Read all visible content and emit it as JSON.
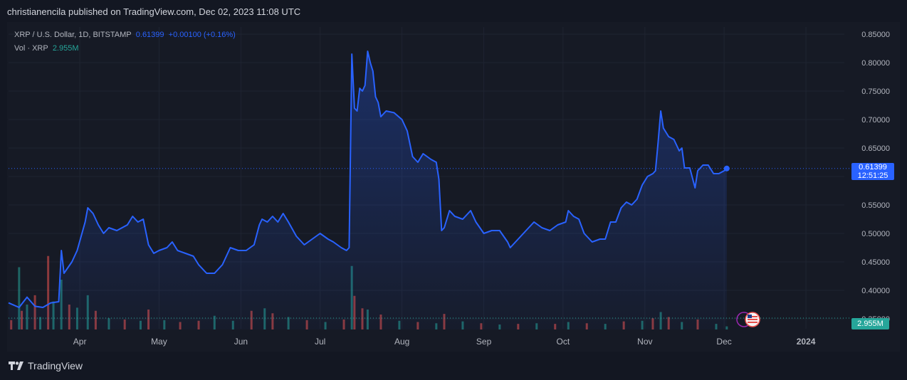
{
  "header": {
    "published": "christianencila published on TradingView.com, Dec 02, 2023 11:08 UTC"
  },
  "legend": {
    "symbol": "XRP / U.S. Dollar, 1D, BITSTAMP",
    "last": "0.61399",
    "change": "+0.00100 (+0.16%)",
    "vol_label": "Vol · XRP",
    "vol_value": "2.955M"
  },
  "price_tag": {
    "price": "0.61399",
    "countdown": "12:51:25"
  },
  "volume_tag": {
    "value": "2.955M"
  },
  "footer": {
    "brand": "TradingView"
  },
  "colors": {
    "line": "#2962ff",
    "up": "#26a69a",
    "down": "#ef5350",
    "bg": "#131722"
  },
  "chart_data": {
    "type": "line",
    "y_ticks": [
      "0.85000",
      "0.80000",
      "0.75000",
      "0.70000",
      "0.65000",
      "0.60000",
      "0.55000",
      "0.50000",
      "0.45000",
      "0.40000",
      "0.35000"
    ],
    "ylim": [
      0.35,
      0.85
    ],
    "x_ticks": [
      "Apr",
      "May",
      "Jun",
      "Jul",
      "Aug",
      "Sep",
      "Oct",
      "Nov",
      "Dec",
      "2024"
    ],
    "x_tick_dates": [
      "2023-04-01",
      "2023-05-01",
      "2023-06-01",
      "2023-07-01",
      "2023-08-01",
      "2023-09-01",
      "2023-10-01",
      "2023-11-01",
      "2023-12-01",
      "2024-01-01"
    ],
    "xlim": [
      "2023-03-05",
      "2024-01-15"
    ],
    "grid": true,
    "series": [
      {
        "values": [
          [
            "2023-03-05",
            0.378
          ],
          [
            "2023-03-09",
            0.37
          ],
          [
            "2023-03-12",
            0.388
          ],
          [
            "2023-03-15",
            0.372
          ],
          [
            "2023-03-18",
            0.37
          ],
          [
            "2023-03-21",
            0.378
          ],
          [
            "2023-03-24",
            0.38
          ],
          [
            "2023-03-25",
            0.47
          ],
          [
            "2023-03-26",
            0.43
          ],
          [
            "2023-03-29",
            0.45
          ],
          [
            "2023-03-31",
            0.47
          ],
          [
            "2023-04-03",
            0.52
          ],
          [
            "2023-04-04",
            0.545
          ],
          [
            "2023-04-06",
            0.535
          ],
          [
            "2023-04-08",
            0.515
          ],
          [
            "2023-04-10",
            0.5
          ],
          [
            "2023-04-12",
            0.51
          ],
          [
            "2023-04-15",
            0.505
          ],
          [
            "2023-04-17",
            0.51
          ],
          [
            "2023-04-19",
            0.515
          ],
          [
            "2023-04-21",
            0.53
          ],
          [
            "2023-04-23",
            0.52
          ],
          [
            "2023-04-25",
            0.525
          ],
          [
            "2023-04-27",
            0.48
          ],
          [
            "2023-04-29",
            0.465
          ],
          [
            "2023-05-01",
            0.47
          ],
          [
            "2023-05-04",
            0.475
          ],
          [
            "2023-05-06",
            0.485
          ],
          [
            "2023-05-08",
            0.47
          ],
          [
            "2023-05-11",
            0.465
          ],
          [
            "2023-05-14",
            0.46
          ],
          [
            "2023-05-16",
            0.445
          ],
          [
            "2023-05-19",
            0.43
          ],
          [
            "2023-05-22",
            0.43
          ],
          [
            "2023-05-25",
            0.445
          ],
          [
            "2023-05-28",
            0.475
          ],
          [
            "2023-05-31",
            0.47
          ],
          [
            "2023-06-03",
            0.47
          ],
          [
            "2023-06-06",
            0.48
          ],
          [
            "2023-06-08",
            0.515
          ],
          [
            "2023-06-09",
            0.525
          ],
          [
            "2023-06-11",
            0.52
          ],
          [
            "2023-06-13",
            0.53
          ],
          [
            "2023-06-15",
            0.52
          ],
          [
            "2023-06-17",
            0.535
          ],
          [
            "2023-06-19",
            0.52
          ],
          [
            "2023-06-22",
            0.495
          ],
          [
            "2023-06-25",
            0.48
          ],
          [
            "2023-06-28",
            0.49
          ],
          [
            "2023-07-01",
            0.5
          ],
          [
            "2023-07-04",
            0.49
          ],
          [
            "2023-07-06",
            0.485
          ],
          [
            "2023-07-09",
            0.475
          ],
          [
            "2023-07-11",
            0.47
          ],
          [
            "2023-07-12",
            0.475
          ],
          [
            "2023-07-13",
            0.815
          ],
          [
            "2023-07-14",
            0.72
          ],
          [
            "2023-07-15",
            0.715
          ],
          [
            "2023-07-16",
            0.755
          ],
          [
            "2023-07-17",
            0.75
          ],
          [
            "2023-07-18",
            0.76
          ],
          [
            "2023-07-19",
            0.82
          ],
          [
            "2023-07-20",
            0.8
          ],
          [
            "2023-07-21",
            0.785
          ],
          [
            "2023-07-22",
            0.74
          ],
          [
            "2023-07-23",
            0.73
          ],
          [
            "2023-07-24",
            0.705
          ],
          [
            "2023-07-26",
            0.715
          ],
          [
            "2023-07-29",
            0.712
          ],
          [
            "2023-08-01",
            0.7
          ],
          [
            "2023-08-03",
            0.68
          ],
          [
            "2023-08-05",
            0.635
          ],
          [
            "2023-08-07",
            0.625
          ],
          [
            "2023-08-09",
            0.64
          ],
          [
            "2023-08-12",
            0.63
          ],
          [
            "2023-08-14",
            0.625
          ],
          [
            "2023-08-15",
            0.595
          ],
          [
            "2023-08-16",
            0.505
          ],
          [
            "2023-08-17",
            0.51
          ],
          [
            "2023-08-19",
            0.54
          ],
          [
            "2023-08-21",
            0.53
          ],
          [
            "2023-08-24",
            0.525
          ],
          [
            "2023-08-27",
            0.54
          ],
          [
            "2023-08-29",
            0.52
          ],
          [
            "2023-09-01",
            0.5
          ],
          [
            "2023-09-04",
            0.505
          ],
          [
            "2023-09-07",
            0.505
          ],
          [
            "2023-09-10",
            0.485
          ],
          [
            "2023-09-11",
            0.475
          ],
          [
            "2023-09-14",
            0.49
          ],
          [
            "2023-09-17",
            0.505
          ],
          [
            "2023-09-20",
            0.52
          ],
          [
            "2023-09-23",
            0.51
          ],
          [
            "2023-09-26",
            0.505
          ],
          [
            "2023-09-29",
            0.515
          ],
          [
            "2023-10-02",
            0.52
          ],
          [
            "2023-10-03",
            0.54
          ],
          [
            "2023-10-05",
            0.53
          ],
          [
            "2023-10-07",
            0.525
          ],
          [
            "2023-10-09",
            0.5
          ],
          [
            "2023-10-12",
            0.485
          ],
          [
            "2023-10-15",
            0.49
          ],
          [
            "2023-10-17",
            0.49
          ],
          [
            "2023-10-19",
            0.52
          ],
          [
            "2023-10-21",
            0.52
          ],
          [
            "2023-10-23",
            0.545
          ],
          [
            "2023-10-25",
            0.555
          ],
          [
            "2023-10-27",
            0.55
          ],
          [
            "2023-10-29",
            0.56
          ],
          [
            "2023-10-31",
            0.585
          ],
          [
            "2023-11-02",
            0.6
          ],
          [
            "2023-11-04",
            0.605
          ],
          [
            "2023-11-05",
            0.61
          ],
          [
            "2023-11-06",
            0.66
          ],
          [
            "2023-11-07",
            0.715
          ],
          [
            "2023-11-08",
            0.685
          ],
          [
            "2023-11-10",
            0.67
          ],
          [
            "2023-11-12",
            0.665
          ],
          [
            "2023-11-14",
            0.645
          ],
          [
            "2023-11-15",
            0.65
          ],
          [
            "2023-11-16",
            0.615
          ],
          [
            "2023-11-18",
            0.615
          ],
          [
            "2023-11-20",
            0.58
          ],
          [
            "2023-11-21",
            0.61
          ],
          [
            "2023-11-23",
            0.62
          ],
          [
            "2023-11-25",
            0.62
          ],
          [
            "2023-11-27",
            0.605
          ],
          [
            "2023-11-29",
            0.605
          ],
          [
            "2023-12-01",
            0.61
          ],
          [
            "2023-12-02",
            0.614
          ]
        ]
      }
    ],
    "last_point": [
      "2023-12-02",
      0.61399
    ],
    "volume": {
      "ylim": [
        0,
        120
      ],
      "bars": [
        {
          "d": "2023-03-06",
          "v": 15,
          "up": false
        },
        {
          "d": "2023-03-09",
          "v": 100,
          "up": true
        },
        {
          "d": "2023-03-10",
          "v": 30,
          "up": false
        },
        {
          "d": "2023-03-12",
          "v": 40,
          "up": true
        },
        {
          "d": "2023-03-15",
          "v": 55,
          "up": false
        },
        {
          "d": "2023-03-17",
          "v": 20,
          "up": true
        },
        {
          "d": "2023-03-20",
          "v": 118,
          "up": false
        },
        {
          "d": "2023-03-22",
          "v": 45,
          "up": true
        },
        {
          "d": "2023-03-25",
          "v": 80,
          "up": true
        },
        {
          "d": "2023-03-28",
          "v": 40,
          "up": false
        },
        {
          "d": "2023-03-31",
          "v": 35,
          "up": true
        },
        {
          "d": "2023-04-04",
          "v": 55,
          "up": true
        },
        {
          "d": "2023-04-07",
          "v": 30,
          "up": false
        },
        {
          "d": "2023-04-12",
          "v": 18,
          "up": true
        },
        {
          "d": "2023-04-18",
          "v": 16,
          "up": false
        },
        {
          "d": "2023-04-24",
          "v": 14,
          "up": true
        },
        {
          "d": "2023-04-27",
          "v": 32,
          "up": false
        },
        {
          "d": "2023-05-03",
          "v": 15,
          "up": true
        },
        {
          "d": "2023-05-09",
          "v": 12,
          "up": false
        },
        {
          "d": "2023-05-16",
          "v": 14,
          "up": false
        },
        {
          "d": "2023-05-22",
          "v": 22,
          "up": true
        },
        {
          "d": "2023-05-29",
          "v": 14,
          "up": true
        },
        {
          "d": "2023-06-05",
          "v": 30,
          "up": false
        },
        {
          "d": "2023-06-10",
          "v": 34,
          "up": true
        },
        {
          "d": "2023-06-13",
          "v": 26,
          "up": false
        },
        {
          "d": "2023-06-19",
          "v": 20,
          "up": true
        },
        {
          "d": "2023-06-26",
          "v": 15,
          "up": false
        },
        {
          "d": "2023-07-03",
          "v": 12,
          "up": true
        },
        {
          "d": "2023-07-10",
          "v": 16,
          "up": false
        },
        {
          "d": "2023-07-13",
          "v": 102,
          "up": true
        },
        {
          "d": "2023-07-14",
          "v": 54,
          "up": false
        },
        {
          "d": "2023-07-17",
          "v": 34,
          "up": false
        },
        {
          "d": "2023-07-19",
          "v": 32,
          "up": true
        },
        {
          "d": "2023-07-24",
          "v": 24,
          "up": false
        },
        {
          "d": "2023-07-31",
          "v": 14,
          "up": true
        },
        {
          "d": "2023-08-07",
          "v": 12,
          "up": false
        },
        {
          "d": "2023-08-14",
          "v": 10,
          "up": true
        },
        {
          "d": "2023-08-17",
          "v": 25,
          "up": false
        },
        {
          "d": "2023-08-24",
          "v": 13,
          "up": true
        },
        {
          "d": "2023-08-31",
          "v": 10,
          "up": false
        },
        {
          "d": "2023-09-07",
          "v": 8,
          "up": true
        },
        {
          "d": "2023-09-14",
          "v": 9,
          "up": false
        },
        {
          "d": "2023-09-21",
          "v": 10,
          "up": true
        },
        {
          "d": "2023-09-28",
          "v": 9,
          "up": false
        },
        {
          "d": "2023-10-03",
          "v": 12,
          "up": true
        },
        {
          "d": "2023-10-10",
          "v": 10,
          "up": false
        },
        {
          "d": "2023-10-17",
          "v": 9,
          "up": true
        },
        {
          "d": "2023-10-24",
          "v": 13,
          "up": false
        },
        {
          "d": "2023-10-31",
          "v": 14,
          "up": true
        },
        {
          "d": "2023-11-04",
          "v": 18,
          "up": false
        },
        {
          "d": "2023-11-07",
          "v": 28,
          "up": true
        },
        {
          "d": "2023-11-10",
          "v": 20,
          "up": false
        },
        {
          "d": "2023-11-15",
          "v": 12,
          "up": true
        },
        {
          "d": "2023-11-21",
          "v": 16,
          "up": false
        },
        {
          "d": "2023-11-28",
          "v": 9,
          "up": true
        },
        {
          "d": "2023-12-02",
          "v": 5,
          "up": true
        }
      ]
    }
  }
}
